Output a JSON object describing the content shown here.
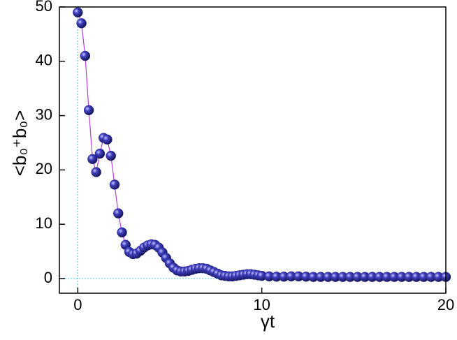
{
  "chart_data": {
    "type": "scatter",
    "xlabel": "γt",
    "ylabel": "<b₀⁺b₀>",
    "x": [
      0,
      0.2,
      0.4,
      0.6,
      0.8,
      1,
      1.2,
      1.4,
      1.6,
      1.8,
      2,
      2.2,
      2.4,
      2.6,
      2.8,
      3,
      3.2,
      3.4,
      3.6,
      3.8,
      4,
      4.2,
      4.4,
      4.6,
      4.8,
      5,
      5.2,
      5.4,
      5.6,
      5.8,
      6,
      6.2,
      6.4,
      6.6,
      6.8,
      7,
      7.2,
      7.4,
      7.6,
      7.8,
      8,
      8.2,
      8.4,
      8.6,
      8.8,
      9,
      9.2,
      9.4,
      9.6,
      9.8,
      10,
      10.4,
      10.8,
      11.2,
      11.6,
      12,
      12.4,
      12.8,
      13.2,
      13.6,
      14,
      14.4,
      14.8,
      15.2,
      15.6,
      16,
      16.4,
      16.8,
      17.2,
      17.6,
      18,
      18.4,
      18.8,
      19.2,
      19.6,
      20
    ],
    "series": [
      {
        "color": "#2a2a9a",
        "line_color": "#b040e0",
        "values": [
          49,
          47,
          41,
          31,
          22,
          19.6,
          23,
          25.9,
          25.6,
          22.6,
          17.3,
          12,
          8.5,
          6.2,
          4.9,
          4.5,
          4.6,
          5.1,
          5.7,
          6.1,
          6.3,
          6.2,
          5.7,
          4.8,
          3.8,
          2.8,
          2,
          1.5,
          1.3,
          1.3,
          1.4,
          1.6,
          1.8,
          1.9,
          1.9,
          1.8,
          1.5,
          1.2,
          0.9,
          0.6,
          0.5,
          0.4,
          0.4,
          0.5,
          0.6,
          0.7,
          0.8,
          0.8,
          0.7,
          0.6,
          0.5,
          0.4,
          0.35,
          0.35,
          0.4,
          0.4,
          0.35,
          0.3,
          0.3,
          0.3,
          0.3,
          0.3,
          0.3,
          0.3,
          0.3,
          0.3,
          0.3,
          0.3,
          0.3,
          0.3,
          0.3,
          0.3,
          0.3,
          0.3,
          0.3,
          0.3
        ]
      }
    ],
    "xlim": [
      -1,
      20
    ],
    "ylim": [
      -2.7,
      50
    ],
    "xticks": [
      0,
      10,
      20
    ],
    "yticks": [
      0,
      10,
      20,
      30,
      40,
      50
    ],
    "zero_lines": true,
    "zero_line_color": "#40d0e0"
  }
}
